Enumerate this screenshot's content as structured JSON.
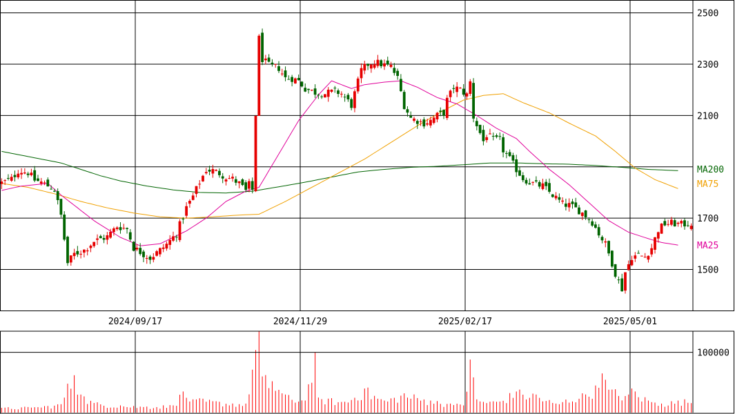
{
  "chart_data": {
    "type": "candlestick",
    "colors": {
      "up": "#e60000",
      "down": "#006400",
      "ma25": "#e0009a",
      "ma75": "#f0a000",
      "ma200": "#006400",
      "volume": "#ff0000",
      "grid": "#000000"
    },
    "price_axis": {
      "range": [
        1340,
        2550
      ],
      "ticks": [
        1500,
        1700,
        2100,
        2300,
        2500
      ]
    },
    "volume_axis": {
      "range": [
        0,
        135000
      ],
      "ticks": [
        100000
      ],
      "tick_labels": [
        "100000"
      ]
    },
    "date_labels": [
      "2024/09/17",
      "2024/11/29",
      "2025/02/17",
      "2025/05/01"
    ],
    "date_label_bars": [
      40,
      90,
      140,
      190
    ],
    "ma_legend": [
      {
        "label": "MA200",
        "color": "#006400"
      },
      {
        "label": "MA75",
        "color": "#f0a000"
      },
      {
        "label": "MA25",
        "color": "#e0009a"
      }
    ],
    "price_keys": [
      [
        0,
        1838
      ],
      [
        3,
        1852
      ],
      [
        5,
        1885
      ],
      [
        8,
        1878
      ],
      [
        10,
        1848
      ],
      [
        12,
        1840
      ],
      [
        16,
        1812
      ],
      [
        18,
        1710
      ],
      [
        20,
        1525
      ],
      [
        22,
        1560
      ],
      [
        25,
        1575
      ],
      [
        28,
        1610
      ],
      [
        32,
        1628
      ],
      [
        35,
        1668
      ],
      [
        38,
        1658
      ],
      [
        40,
        1585
      ],
      [
        43,
        1560
      ],
      [
        45,
        1545
      ],
      [
        48,
        1575
      ],
      [
        50,
        1598
      ],
      [
        53,
        1640
      ],
      [
        56,
        1740
      ],
      [
        58,
        1785
      ],
      [
        60,
        1840
      ],
      [
        62,
        1888
      ],
      [
        64,
        1885
      ],
      [
        66,
        1875
      ],
      [
        68,
        1860
      ],
      [
        70,
        1852
      ],
      [
        72,
        1835
      ],
      [
        74,
        1805
      ],
      [
        75,
        1830
      ],
      [
        76,
        1810
      ],
      [
        78,
        2400
      ],
      [
        79,
        2320
      ],
      [
        81,
        2295
      ],
      [
        84,
        2285
      ],
      [
        86,
        2245
      ],
      [
        88,
        2245
      ],
      [
        90,
        2235
      ],
      [
        92,
        2205
      ],
      [
        95,
        2190
      ],
      [
        98,
        2185
      ],
      [
        101,
        2195
      ],
      [
        103,
        2185
      ],
      [
        106,
        2140
      ],
      [
        109,
        2275
      ],
      [
        111,
        2300
      ],
      [
        113,
        2310
      ],
      [
        115,
        2300
      ],
      [
        118,
        2290
      ],
      [
        120,
        2245
      ],
      [
        122,
        2140
      ],
      [
        124,
        2090
      ],
      [
        126,
        2080
      ],
      [
        128,
        2070
      ],
      [
        130,
        2080
      ],
      [
        132,
        2100
      ],
      [
        134,
        2110
      ],
      [
        135,
        2160
      ],
      [
        137,
        2210
      ],
      [
        139,
        2200
      ],
      [
        141,
        2180
      ],
      [
        142,
        2230
      ],
      [
        143,
        2095
      ],
      [
        146,
        2000
      ],
      [
        147,
        2025
      ],
      [
        149,
        2005
      ],
      [
        151,
        2005
      ],
      [
        152,
        1965
      ],
      [
        154,
        1930
      ],
      [
        156,
        1890
      ],
      [
        158,
        1855
      ],
      [
        160,
        1840
      ],
      [
        162,
        1830
      ],
      [
        164,
        1825
      ],
      [
        167,
        1790
      ],
      [
        170,
        1755
      ],
      [
        172,
        1750
      ],
      [
        175,
        1730
      ],
      [
        177,
        1710
      ],
      [
        179,
        1685
      ],
      [
        181,
        1640
      ],
      [
        183,
        1598
      ],
      [
        185,
        1525
      ],
      [
        186,
        1485
      ],
      [
        187,
        1455
      ],
      [
        188,
        1425
      ],
      [
        189,
        1490
      ],
      [
        191,
        1550
      ],
      [
        193,
        1555
      ],
      [
        195,
        1550
      ],
      [
        197,
        1585
      ],
      [
        199,
        1655
      ],
      [
        201,
        1678
      ],
      [
        203,
        1680
      ],
      [
        206,
        1675
      ],
      [
        209,
        1680
      ]
    ],
    "ma25_keys": [
      [
        0,
        1808
      ],
      [
        6,
        1825
      ],
      [
        14,
        1835
      ],
      [
        18,
        1790
      ],
      [
        28,
        1690
      ],
      [
        36,
        1625
      ],
      [
        42,
        1592
      ],
      [
        48,
        1600
      ],
      [
        56,
        1650
      ],
      [
        62,
        1700
      ],
      [
        68,
        1765
      ],
      [
        74,
        1805
      ],
      [
        78,
        1820
      ],
      [
        84,
        1950
      ],
      [
        90,
        2080
      ],
      [
        96,
        2180
      ],
      [
        100,
        2235
      ],
      [
        106,
        2205
      ],
      [
        110,
        2220
      ],
      [
        116,
        2230
      ],
      [
        121,
        2235
      ],
      [
        126,
        2210
      ],
      [
        132,
        2170
      ],
      [
        138,
        2145
      ],
      [
        144,
        2100
      ],
      [
        150,
        2050
      ],
      [
        156,
        2010
      ],
      [
        160,
        1960
      ],
      [
        166,
        1890
      ],
      [
        172,
        1830
      ],
      [
        178,
        1760
      ],
      [
        184,
        1690
      ],
      [
        190,
        1645
      ],
      [
        196,
        1620
      ],
      [
        200,
        1605
      ],
      [
        205,
        1595
      ]
    ],
    "ma75_keys": [
      [
        0,
        1835
      ],
      [
        8,
        1820
      ],
      [
        16,
        1795
      ],
      [
        24,
        1765
      ],
      [
        32,
        1740
      ],
      [
        40,
        1720
      ],
      [
        48,
        1705
      ],
      [
        56,
        1700
      ],
      [
        64,
        1705
      ],
      [
        72,
        1712
      ],
      [
        78,
        1715
      ],
      [
        86,
        1765
      ],
      [
        94,
        1820
      ],
      [
        102,
        1875
      ],
      [
        110,
        1930
      ],
      [
        118,
        1995
      ],
      [
        126,
        2060
      ],
      [
        134,
        2120
      ],
      [
        140,
        2160
      ],
      [
        146,
        2178
      ],
      [
        152,
        2185
      ],
      [
        158,
        2150
      ],
      [
        166,
        2110
      ],
      [
        172,
        2070
      ],
      [
        180,
        2020
      ],
      [
        186,
        1960
      ],
      [
        192,
        1895
      ],
      [
        198,
        1850
      ],
      [
        205,
        1815
      ]
    ],
    "ma200_keys": [
      [
        0,
        1960
      ],
      [
        6,
        1945
      ],
      [
        12,
        1930
      ],
      [
        18,
        1915
      ],
      [
        24,
        1890
      ],
      [
        30,
        1865
      ],
      [
        36,
        1845
      ],
      [
        44,
        1825
      ],
      [
        52,
        1810
      ],
      [
        60,
        1800
      ],
      [
        68,
        1798
      ],
      [
        76,
        1805
      ],
      [
        84,
        1822
      ],
      [
        92,
        1840
      ],
      [
        100,
        1860
      ],
      [
        108,
        1880
      ],
      [
        116,
        1890
      ],
      [
        124,
        1898
      ],
      [
        132,
        1902
      ],
      [
        140,
        1908
      ],
      [
        148,
        1915
      ],
      [
        156,
        1915
      ],
      [
        164,
        1912
      ],
      [
        172,
        1910
      ],
      [
        180,
        1905
      ],
      [
        188,
        1898
      ],
      [
        196,
        1890
      ],
      [
        205,
        1885
      ]
    ],
    "volume_keys": [
      [
        0,
        8000
      ],
      [
        10,
        9000
      ],
      [
        18,
        14000
      ],
      [
        20,
        48000
      ],
      [
        22,
        62000
      ],
      [
        24,
        30000
      ],
      [
        28,
        16000
      ],
      [
        36,
        12000
      ],
      [
        44,
        10000
      ],
      [
        52,
        12000
      ],
      [
        55,
        35000
      ],
      [
        58,
        22000
      ],
      [
        66,
        18000
      ],
      [
        74,
        15000
      ],
      [
        78,
        145000
      ],
      [
        79,
        60000
      ],
      [
        82,
        52000
      ],
      [
        86,
        30000
      ],
      [
        92,
        20000
      ],
      [
        95,
        100000
      ],
      [
        96,
        25000
      ],
      [
        104,
        18000
      ],
      [
        110,
        40000
      ],
      [
        116,
        20000
      ],
      [
        122,
        32000
      ],
      [
        130,
        20000
      ],
      [
        136,
        15000
      ],
      [
        140,
        12000
      ],
      [
        142,
        88000
      ],
      [
        144,
        22000
      ],
      [
        150,
        18000
      ],
      [
        156,
        35000
      ],
      [
        162,
        30000
      ],
      [
        168,
        15000
      ],
      [
        176,
        32000
      ],
      [
        180,
        45000
      ],
      [
        182,
        65000
      ],
      [
        184,
        38000
      ],
      [
        190,
        30000
      ],
      [
        191,
        40000
      ],
      [
        196,
        20000
      ],
      [
        200,
        15000
      ],
      [
        205,
        20000
      ]
    ]
  }
}
